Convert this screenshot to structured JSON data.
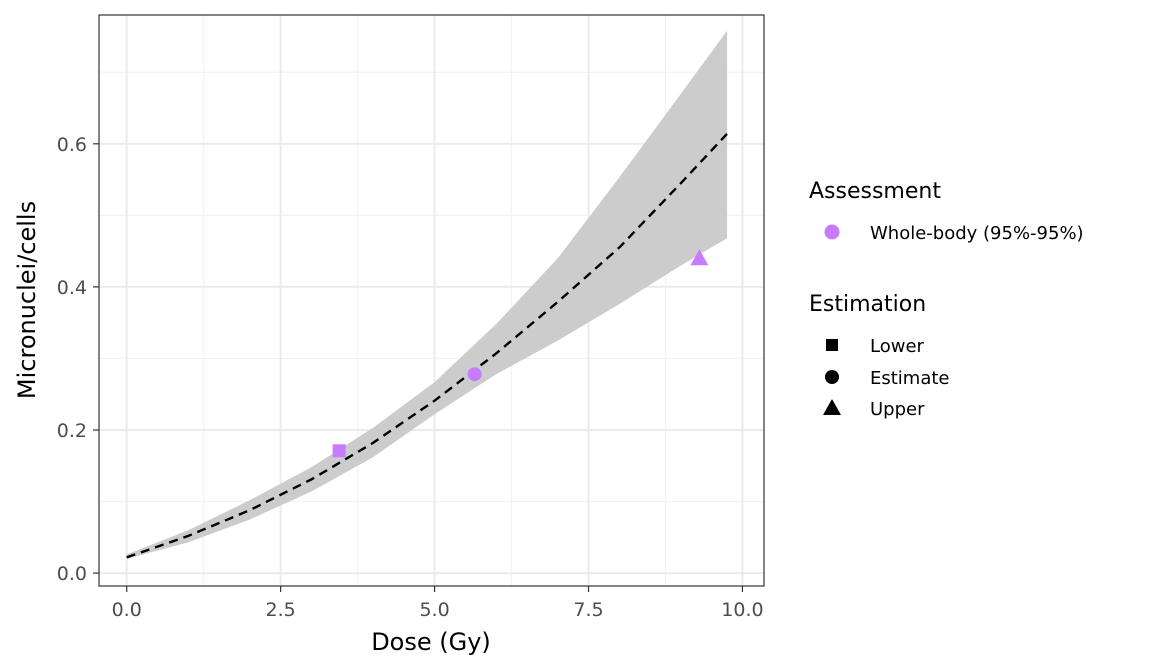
{
  "chart_data": {
    "type": "line",
    "xlabel": "Dose (Gy)",
    "ylabel": "Micronuclei/cells",
    "xlim": [
      -0.45,
      10.35
    ],
    "ylim": [
      -0.018,
      0.78
    ],
    "x_ticks": [
      0.0,
      2.5,
      5.0,
      7.5,
      10.0
    ],
    "x_tick_labels": [
      "0.0",
      "2.5",
      "5.0",
      "7.5",
      "10.0"
    ],
    "y_ticks": [
      0.0,
      0.2,
      0.4,
      0.6
    ],
    "y_tick_labels": [
      "0.0",
      "0.2",
      "0.4",
      "0.6"
    ],
    "grid": true,
    "curve": {
      "style": "dashed",
      "color": "#000000",
      "x": [
        0.0,
        1.0,
        2.0,
        3.0,
        4.0,
        5.0,
        6.0,
        7.0,
        8.0,
        9.0,
        9.75
      ],
      "y": [
        0.022,
        0.052,
        0.088,
        0.131,
        0.182,
        0.241,
        0.307,
        0.379,
        0.455,
        0.545,
        0.614
      ]
    },
    "confidence_band": {
      "color": "#cccccc",
      "x": [
        0.0,
        1.0,
        2.0,
        3.0,
        4.0,
        5.0,
        6.0,
        7.0,
        8.0,
        9.0,
        9.75
      ],
      "lower": [
        0.02,
        0.043,
        0.075,
        0.114,
        0.162,
        0.222,
        0.278,
        0.325,
        0.376,
        0.43,
        0.468
      ],
      "upper": [
        0.026,
        0.06,
        0.102,
        0.148,
        0.203,
        0.267,
        0.348,
        0.44,
        0.553,
        0.67,
        0.758
      ]
    },
    "points": [
      {
        "x": 3.45,
        "y": 0.171,
        "shape": "square",
        "estimation": "Lower",
        "assessment": "Whole-body (95%-95%)"
      },
      {
        "x": 5.65,
        "y": 0.278,
        "shape": "circle",
        "estimation": "Estimate",
        "assessment": "Whole-body (95%-95%)"
      },
      {
        "x": 9.3,
        "y": 0.44,
        "shape": "triangle",
        "estimation": "Upper",
        "assessment": "Whole-body (95%-95%)"
      }
    ],
    "point_color": "#c77cff",
    "legend_position": "right",
    "legend": {
      "assessment": {
        "title": "Assessment",
        "items": [
          {
            "label": "Whole-body (95%-95%)",
            "shape": "circle",
            "color": "#c77cff"
          }
        ]
      },
      "estimation": {
        "title": "Estimation",
        "items": [
          {
            "label": "Lower",
            "shape": "square",
            "color": "#000000"
          },
          {
            "label": "Estimate",
            "shape": "circle",
            "color": "#000000"
          },
          {
            "label": "Upper",
            "shape": "triangle",
            "color": "#000000"
          }
        ]
      }
    }
  }
}
